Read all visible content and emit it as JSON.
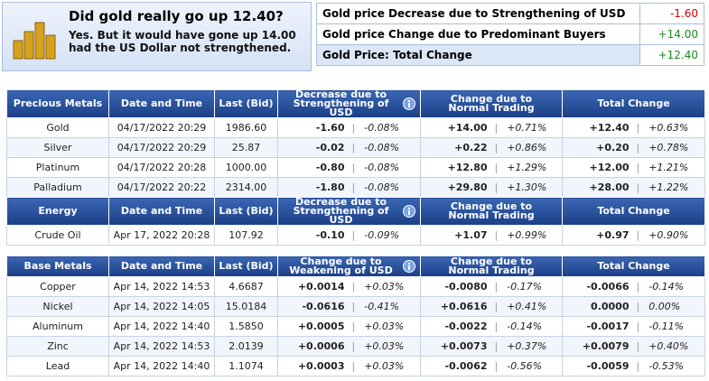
{
  "summary": {
    "title": "Did gold really go up 12.40?",
    "text": "Yes. But it would have gone up 14.00 had the US Dollar not strengthened.",
    "rows": [
      {
        "label": "Gold price Decrease due to Strengthening of USD",
        "value": "-1.60"
      },
      {
        "label": "Gold price Change due to Predominant Buyers",
        "value": "+14.00"
      },
      {
        "label": "Gold Price: Total Change",
        "value": "+12.40"
      }
    ]
  },
  "tables": [
    {
      "headers": [
        "Precious Metals",
        "Date and Time",
        "Last (Bid)",
        "Decrease due to Strengthening of USD",
        "Change due to Normal Trading",
        "Total Change"
      ],
      "rows": [
        [
          "Gold",
          "04/17/2022 20:29",
          "1986.60",
          "-1.60",
          "-0.08%",
          "+14.00",
          "+0.71%",
          "+12.40",
          "+0.63%"
        ],
        [
          "Silver",
          "04/17/2022 20:29",
          "25.87",
          "-0.02",
          "-0.08%",
          "+0.22",
          "+0.86%",
          "+0.20",
          "+0.78%"
        ],
        [
          "Platinum",
          "04/17/2022 20:28",
          "1000.00",
          "-0.80",
          "-0.08%",
          "+12.80",
          "+1.29%",
          "+12.00",
          "+1.21%"
        ],
        [
          "Palladium",
          "04/17/2022 20:22",
          "2314.00",
          "-1.80",
          "-0.08%",
          "+29.80",
          "+1.30%",
          "+28.00",
          "+1.22%"
        ]
      ]
    },
    {
      "headers": [
        "Energy",
        "Date and Time",
        "Last (Bid)",
        "Decrease due to Strengthening of USD",
        "Change due to Normal Trading",
        "Total Change"
      ],
      "rows": [
        [
          "Crude Oil",
          "Apr 17, 2022 20:28",
          "107.92",
          "-0.10",
          "-0.09%",
          "+1.07",
          "+0.99%",
          "+0.97",
          "+0.90%"
        ]
      ]
    },
    {
      "headers": [
        "Base Metals",
        "Date and Time",
        "Last (Bid)",
        "Change due to Weakening of USD",
        "Change due to Normal Trading",
        "Total Change"
      ],
      "rows": [
        [
          "Copper",
          "Apr 14, 2022 14:53",
          "4.6687",
          "+0.0014",
          "+0.03%",
          "-0.0080",
          "-0.17%",
          "-0.0066",
          "-0.14%"
        ],
        [
          "Nickel",
          "Apr 14, 2022 14:05",
          "15.0184",
          "-0.0616",
          "-0.41%",
          "+0.0616",
          "+0.41%",
          "0.0000",
          "0.00%"
        ],
        [
          "Aluminum",
          "Apr 14, 2022 14:40",
          "1.5850",
          "+0.0005",
          "+0.03%",
          "-0.0022",
          "-0.14%",
          "-0.0017",
          "-0.11%"
        ],
        [
          "Zinc",
          "Apr 14, 2022 14:53",
          "2.0139",
          "+0.0006",
          "+0.03%",
          "+0.0073",
          "+0.37%",
          "+0.0079",
          "+0.40%"
        ],
        [
          "Lead",
          "Apr 14, 2022 14:40",
          "1.1074",
          "+0.0003",
          "+0.03%",
          "-0.0062",
          "-0.56%",
          "-0.0059",
          "-0.53%"
        ]
      ]
    }
  ]
}
